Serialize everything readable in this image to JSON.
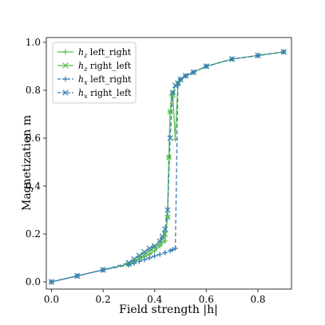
{
  "chart_data": {
    "type": "line",
    "xlabel": "Field strength |h|",
    "ylabel": "Magnetization m",
    "xlim": [
      -0.02,
      0.93
    ],
    "ylim": [
      -0.03,
      1.02
    ],
    "x_ticks": [
      0.0,
      0.2,
      0.4,
      0.6,
      0.8
    ],
    "x_tick_labels": [
      "0.0",
      "0.2",
      "0.4",
      "0.6",
      "0.8"
    ],
    "y_ticks": [
      0.0,
      0.2,
      0.4,
      0.6,
      0.8,
      1.0
    ],
    "y_tick_labels": [
      "0.0",
      "0.2",
      "0.4",
      "0.6",
      "0.8",
      "1.0"
    ],
    "grid": false,
    "legend_position": "top-left",
    "series": [
      {
        "name": "h_z left_right",
        "label_main": "h",
        "label_sub": "z",
        "label_rest": " left_right",
        "color": "#5cbf52",
        "linestyle": "solid",
        "marker": "+",
        "x": [
          0.0,
          0.1,
          0.2,
          0.3,
          0.32,
          0.34,
          0.36,
          0.38,
          0.4,
          0.42,
          0.44,
          0.45,
          0.455,
          0.46,
          0.465,
          0.47,
          0.48,
          0.49,
          0.5,
          0.52,
          0.55,
          0.6,
          0.7,
          0.8,
          0.9
        ],
        "y": [
          0.0,
          0.025,
          0.05,
          0.075,
          0.085,
          0.095,
          0.105,
          0.115,
          0.13,
          0.15,
          0.17,
          0.27,
          0.52,
          0.71,
          0.78,
          0.79,
          0.595,
          0.83,
          0.845,
          0.86,
          0.875,
          0.9,
          0.93,
          0.945,
          0.96
        ]
      },
      {
        "name": "h_z right_left",
        "label_main": "h",
        "label_sub": "z",
        "label_rest": " right_left",
        "color": "#5cbf52",
        "linestyle": "solid",
        "marker": "x",
        "x": [
          0.9,
          0.8,
          0.7,
          0.6,
          0.55,
          0.52,
          0.5,
          0.49,
          0.48,
          0.47,
          0.46,
          0.455,
          0.45,
          0.44,
          0.43,
          0.42,
          0.4,
          0.38,
          0.36,
          0.34,
          0.32,
          0.3,
          0.2,
          0.1,
          0.0
        ],
        "y": [
          0.96,
          0.945,
          0.93,
          0.9,
          0.875,
          0.86,
          0.845,
          0.83,
          0.82,
          0.78,
          0.71,
          0.52,
          0.27,
          0.2,
          0.18,
          0.16,
          0.145,
          0.13,
          0.115,
          0.1,
          0.085,
          0.075,
          0.05,
          0.025,
          0.0
        ]
      },
      {
        "name": "h_x left_right",
        "label_main": "h",
        "label_sub": "x",
        "label_rest": " left_right",
        "color": "#3a7fb8",
        "linestyle": "dashed",
        "marker": "+",
        "x": [
          0.0,
          0.1,
          0.2,
          0.3,
          0.32,
          0.34,
          0.36,
          0.38,
          0.4,
          0.42,
          0.44,
          0.46,
          0.47,
          0.48,
          0.49,
          0.5,
          0.52,
          0.55,
          0.6,
          0.7,
          0.8,
          0.9
        ],
        "y": [
          0.0,
          0.025,
          0.05,
          0.07,
          0.078,
          0.085,
          0.093,
          0.1,
          0.108,
          0.115,
          0.122,
          0.13,
          0.135,
          0.14,
          0.82,
          0.845,
          0.86,
          0.875,
          0.9,
          0.93,
          0.945,
          0.96
        ]
      },
      {
        "name": "h_x right_left",
        "label_main": "h",
        "label_sub": "x",
        "label_rest": " right_left",
        "color": "#3a7fb8",
        "linestyle": "dashed",
        "marker": "x",
        "x": [
          0.9,
          0.8,
          0.7,
          0.6,
          0.55,
          0.52,
          0.5,
          0.49,
          0.48,
          0.47,
          0.46,
          0.45,
          0.44,
          0.43,
          0.42,
          0.4,
          0.38,
          0.36,
          0.34,
          0.32,
          0.3,
          0.2,
          0.1,
          0.0
        ],
        "y": [
          0.96,
          0.945,
          0.93,
          0.9,
          0.875,
          0.86,
          0.845,
          0.83,
          0.82,
          0.79,
          0.6,
          0.3,
          0.22,
          0.19,
          0.17,
          0.15,
          0.14,
          0.125,
          0.11,
          0.095,
          0.08,
          0.05,
          0.025,
          0.0
        ]
      }
    ]
  }
}
